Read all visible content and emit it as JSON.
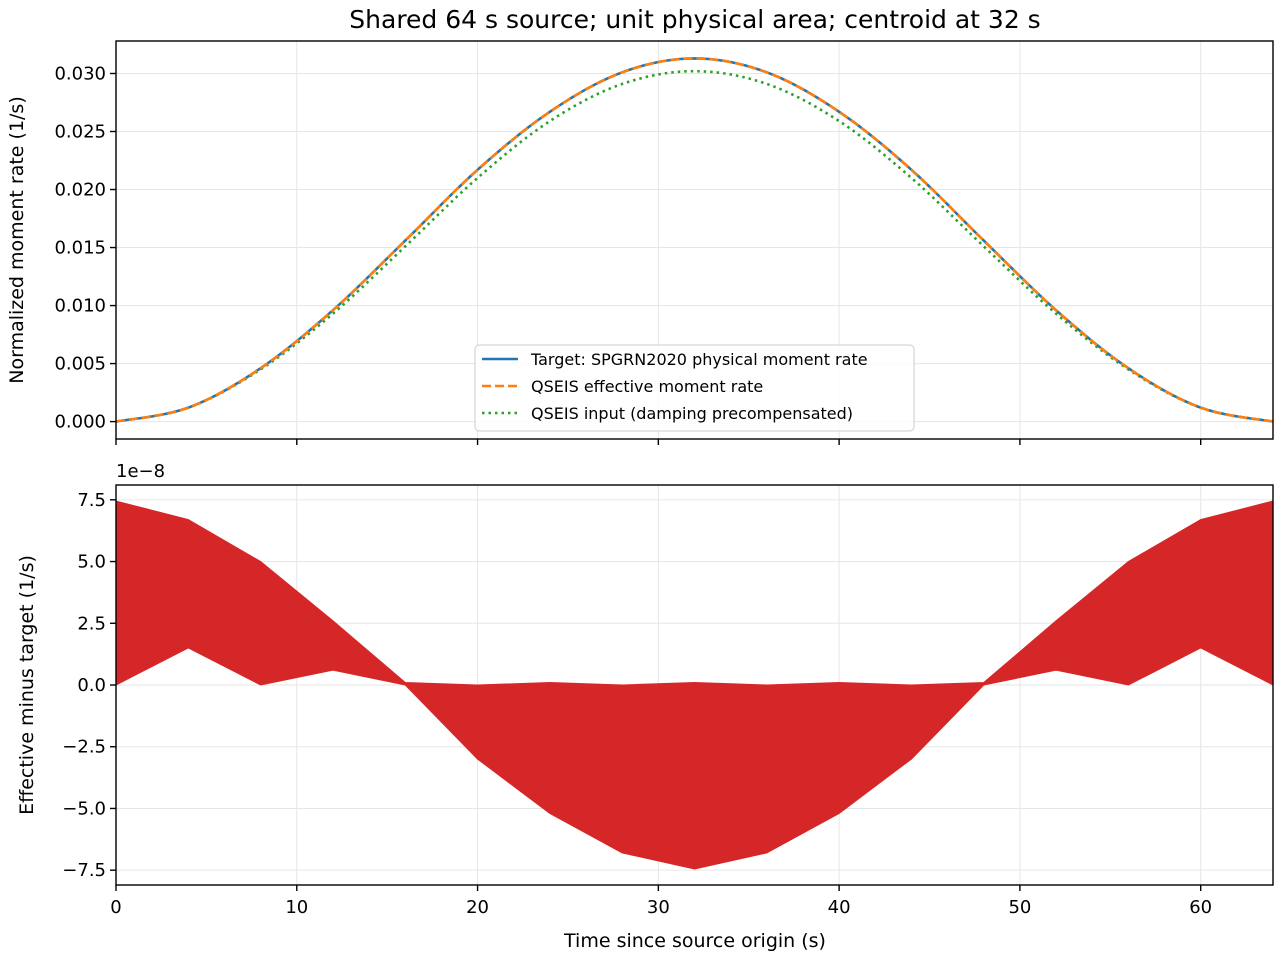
{
  "figure": {
    "title": "Shared 64 s source; unit physical area; centroid at 32 s"
  },
  "chart_data": [
    {
      "type": "line",
      "xlabel": "",
      "ylabel": "Normalized moment rate (1/s)",
      "xlim": [
        0,
        64
      ],
      "ylim": [
        -0.0015,
        0.0328
      ],
      "x_ticks": [
        0,
        10,
        20,
        30,
        40,
        50,
        60
      ],
      "x_tick_labels_visible": false,
      "y_ticks": [
        0.0,
        0.005,
        0.01,
        0.015,
        0.02,
        0.025,
        0.03
      ],
      "y_tick_labels": [
        "0.000",
        "0.005",
        "0.010",
        "0.015",
        "0.020",
        "0.025",
        "0.030"
      ],
      "grid": true,
      "legend_position": "bottom-center",
      "series": [
        {
          "name": "Target: SPGRN2020 physical moment rate",
          "color": "#1f77b4",
          "style": "solid",
          "x": [
            0,
            4,
            8,
            12,
            16,
            20,
            24,
            28,
            32,
            36,
            40,
            44,
            48,
            52,
            56,
            60,
            64
          ],
          "y": [
            0.0,
            0.0012,
            0.0046,
            0.0096,
            0.0156,
            0.0217,
            0.0267,
            0.0301,
            0.0313,
            0.0301,
            0.0267,
            0.0217,
            0.0156,
            0.0096,
            0.0046,
            0.0012,
            0.0
          ]
        },
        {
          "name": "QSEIS effective moment rate",
          "color": "#ff7f0e",
          "style": "dashed",
          "x": [
            0,
            4,
            8,
            12,
            16,
            20,
            24,
            28,
            32,
            36,
            40,
            44,
            48,
            52,
            56,
            60,
            64
          ],
          "y": [
            0.0,
            0.0012,
            0.0046,
            0.0096,
            0.0156,
            0.0217,
            0.0267,
            0.0301,
            0.0313,
            0.0301,
            0.0267,
            0.0217,
            0.0156,
            0.0096,
            0.0046,
            0.0012,
            0.0
          ]
        },
        {
          "name": "QSEIS input (damping precompensated)",
          "color": "#2ca02c",
          "style": "dotted",
          "x": [
            0,
            4,
            8,
            12,
            16,
            20,
            24,
            28,
            32,
            36,
            40,
            44,
            48,
            52,
            56,
            60,
            64
          ],
          "y": [
            0.0,
            0.0012,
            0.0045,
            0.0093,
            0.0151,
            0.021,
            0.0259,
            0.0291,
            0.0302,
            0.0291,
            0.0259,
            0.021,
            0.0151,
            0.0093,
            0.0045,
            0.0012,
            0.0
          ]
        }
      ]
    },
    {
      "type": "area",
      "xlabel": "Time since source origin (s)",
      "ylabel": "Effective minus target (1/s)",
      "offset_label": "1e−8",
      "xlim": [
        0,
        64
      ],
      "ylim": [
        -8.1,
        8.1
      ],
      "x_ticks": [
        0,
        10,
        20,
        30,
        40,
        50,
        60
      ],
      "x_tick_labels": [
        "0",
        "10",
        "20",
        "30",
        "40",
        "50",
        "60"
      ],
      "y_ticks": [
        7.5,
        5.0,
        2.5,
        0.0,
        -2.5,
        -5.0,
        -7.5
      ],
      "y_tick_labels": [
        "7.5",
        "5.0",
        "2.5",
        "0.0",
        "−2.5",
        "−5.0",
        "−7.5"
      ],
      "grid": true,
      "series": [
        {
          "name": "",
          "color": "#d62728",
          "upper_envelope": {
            "x": [
              0,
              4,
              8,
              12,
              16,
              20,
              24,
              28,
              32,
              36,
              40,
              44,
              48,
              52,
              56,
              60,
              64
            ],
            "y": [
              7.45,
              6.7,
              5.0,
              2.6,
              0.1,
              0.0,
              0.1,
              0.0,
              0.1,
              0.0,
              0.1,
              0.0,
              0.1,
              2.6,
              5.0,
              6.7,
              7.45
            ]
          },
          "lower_envelope": {
            "x": [
              0,
              4,
              8,
              12,
              16,
              20,
              24,
              28,
              32,
              36,
              40,
              44,
              48,
              52,
              56,
              60,
              64
            ],
            "y": [
              0.0,
              1.5,
              0.0,
              0.6,
              0.0,
              -3.0,
              -5.2,
              -6.8,
              -7.45,
              -6.8,
              -5.2,
              -3.0,
              0.0,
              0.6,
              0.0,
              1.5,
              0.0
            ]
          }
        }
      ]
    }
  ]
}
